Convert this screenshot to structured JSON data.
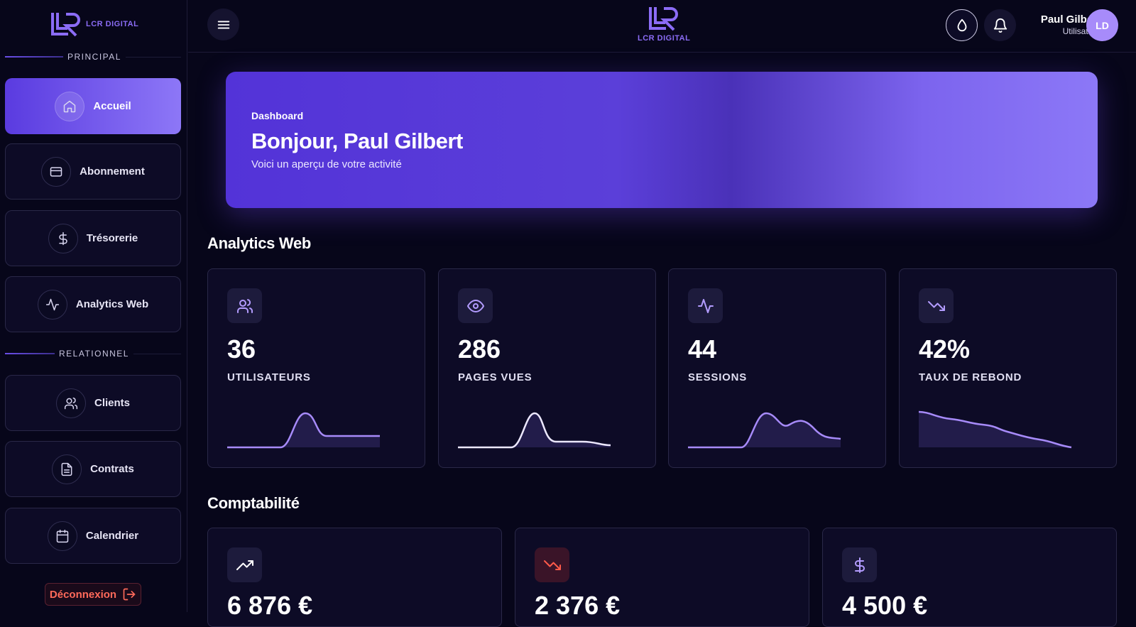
{
  "sidebar": {
    "logo": "LCR DIGITAL",
    "sections": [
      {
        "title": "PRINCIPAL",
        "items": [
          "Accueil",
          "Abonnement",
          "Trésorerie",
          "Analytics Web"
        ]
      },
      {
        "title": "RELATIONNEL",
        "items": [
          "Clients",
          "Contrats",
          "Calendrier"
        ]
      }
    ],
    "logout": "Déconnexion"
  },
  "header": {
    "logo": "LCR DIGITAL",
    "user": {
      "name": "Paul Gilbert",
      "role": "Utilisateur",
      "initials": "LD"
    }
  },
  "banner": {
    "eyebrow": "Dashboard",
    "title": "Bonjour, Paul Gilbert",
    "subtitle": "Voici un aperçu de votre activité"
  },
  "analytics": {
    "title": "Analytics Web",
    "cards": [
      {
        "value": "36",
        "label": "UTILISATEURS"
      },
      {
        "value": "286",
        "label": "PAGES VUES"
      },
      {
        "value": "44",
        "label": "SESSIONS"
      },
      {
        "value": "42%",
        "label": "TAUX DE REBOND"
      }
    ]
  },
  "accounting": {
    "title": "Comptabilité",
    "cards": [
      {
        "value": "6 876 €"
      },
      {
        "value": "2 376 €"
      },
      {
        "value": "4 500 €"
      }
    ]
  }
}
